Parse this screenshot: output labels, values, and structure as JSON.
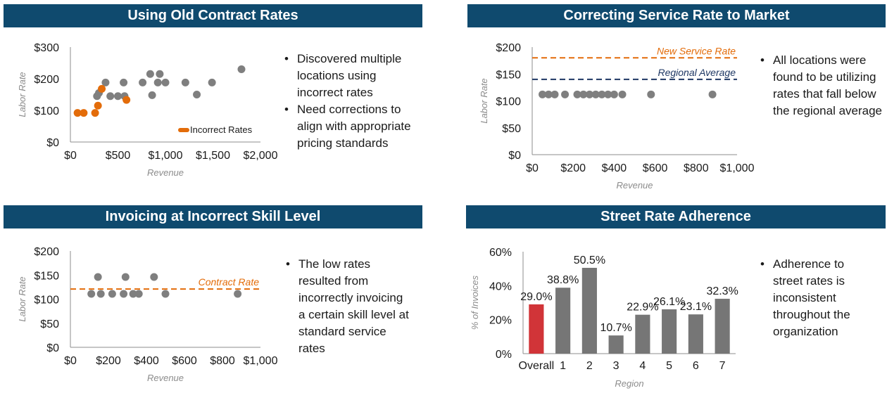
{
  "colors": {
    "banner": "#0f4a6e",
    "gray_point": "#7f7f7f",
    "orange": "#e36c0a",
    "navy": "#1f3864",
    "red": "#d13438",
    "bar_gray": "#767676"
  },
  "chart_data": [
    {
      "type": "scatter",
      "title": "Using Old Contract Rates",
      "xlabel": "Revenue",
      "ylabel": "Labor Rate",
      "xlim": [
        0,
        2000
      ],
      "ylim": [
        0,
        300
      ],
      "x_ticks": [
        0,
        500,
        1000,
        1500,
        2000
      ],
      "y_ticks": [
        0,
        100,
        200,
        300
      ],
      "x_tick_labels": [
        "$0",
        "$500",
        "$1,000",
        "$1,500",
        "$2,000"
      ],
      "y_tick_labels": [
        "$0",
        "$100",
        "$200",
        "$300"
      ],
      "legend": "Incorrect Rates",
      "legend_position": "bottom-right",
      "series": [
        {
          "color": "gray",
          "points": [
            [
              280,
              145
            ],
            [
              300,
              155
            ],
            [
              370,
              188
            ],
            [
              420,
              145
            ],
            [
              500,
              145
            ],
            [
              560,
              188
            ],
            [
              570,
              145
            ],
            [
              760,
              188
            ],
            [
              840,
              215
            ],
            [
              860,
              148
            ],
            [
              920,
              188
            ],
            [
              940,
              215
            ],
            [
              1000,
              188
            ],
            [
              1210,
              188
            ],
            [
              1330,
              150
            ],
            [
              1490,
              188
            ],
            [
              1800,
              230
            ]
          ]
        },
        {
          "name": "Incorrect Rates",
          "color": "orange",
          "points": [
            [
              75,
              92
            ],
            [
              140,
              92
            ],
            [
              260,
              92
            ],
            [
              290,
              115
            ],
            [
              330,
              168
            ],
            [
              590,
              133
            ]
          ]
        }
      ],
      "bullets": [
        "Discovered multiple locations using incorrect rates",
        "Need corrections to align with appropriate pricing standards"
      ]
    },
    {
      "type": "scatter",
      "title": "Correcting Service Rate to Market",
      "xlabel": "Revenue",
      "ylabel": "Labor Rate",
      "xlim": [
        0,
        1000
      ],
      "ylim": [
        0,
        200
      ],
      "x_ticks": [
        0,
        200,
        400,
        600,
        800,
        1000
      ],
      "y_ticks": [
        0,
        50,
        100,
        150,
        200
      ],
      "x_tick_labels": [
        "$0",
        "$200",
        "$400",
        "$600",
        "$800",
        "$1,000"
      ],
      "y_tick_labels": [
        "$0",
        "$50",
        "$100",
        "$150",
        "$200"
      ],
      "reference_lines": [
        {
          "label": "New Service Rate",
          "value": 180,
          "color": "orange"
        },
        {
          "label": "Regional Average",
          "value": 140,
          "color": "navy"
        }
      ],
      "series": [
        {
          "color": "gray",
          "points": [
            [
              50,
              112
            ],
            [
              80,
              112
            ],
            [
              110,
              112
            ],
            [
              160,
              112
            ],
            [
              220,
              112
            ],
            [
              250,
              112
            ],
            [
              280,
              112
            ],
            [
              310,
              112
            ],
            [
              340,
              112
            ],
            [
              370,
              112
            ],
            [
              400,
              112
            ],
            [
              440,
              112
            ],
            [
              580,
              112
            ],
            [
              880,
              112
            ]
          ]
        }
      ],
      "bullets": [
        "All locations were found to be utilizing rates that fall below the regional average"
      ]
    },
    {
      "type": "scatter",
      "title": "Invoicing at Incorrect Skill Level",
      "xlabel": "Revenue",
      "ylabel": "Labor Rate",
      "xlim": [
        0,
        1000
      ],
      "ylim": [
        0,
        200
      ],
      "x_ticks": [
        0,
        200,
        400,
        600,
        800,
        1000
      ],
      "y_ticks": [
        0,
        50,
        100,
        150,
        200
      ],
      "x_tick_labels": [
        "$0",
        "$200",
        "$400",
        "$600",
        "$800",
        "$1,000"
      ],
      "y_tick_labels": [
        "$0",
        "$50",
        "$100",
        "$150",
        "$200"
      ],
      "reference_lines": [
        {
          "label": "Contract Rate",
          "value": 121,
          "color": "orange"
        }
      ],
      "series": [
        {
          "color": "gray",
          "points": [
            [
              110,
              111
            ],
            [
              145,
              146
            ],
            [
              160,
              111
            ],
            [
              220,
              111
            ],
            [
              280,
              111
            ],
            [
              290,
              146
            ],
            [
              330,
              111
            ],
            [
              360,
              111
            ],
            [
              440,
              146
            ],
            [
              500,
              111
            ],
            [
              880,
              111
            ]
          ]
        }
      ],
      "bullets": [
        "The low rates resulted from incorrectly invoicing a certain skill level at standard service rates"
      ]
    },
    {
      "type": "bar",
      "title": "Street Rate Adherence",
      "xlabel": "Region",
      "ylabel": "% of Invoices",
      "ylim": [
        0,
        60
      ],
      "y_ticks": [
        0,
        20,
        40,
        60
      ],
      "y_tick_labels": [
        "0%",
        "20%",
        "40%",
        "60%"
      ],
      "categories": [
        "Overall",
        "1",
        "2",
        "3",
        "4",
        "5",
        "6",
        "7"
      ],
      "values": [
        29.0,
        38.8,
        50.5,
        10.7,
        22.9,
        26.1,
        23.1,
        32.3
      ],
      "data_labels": [
        "29.0%",
        "38.8%",
        "50.5%",
        "10.7%",
        "22.9%",
        "26.1%",
        "23.1%",
        "32.3%"
      ],
      "highlight_first": true,
      "bullets": [
        "Adherence to street rates is inconsistent throughout the organization"
      ]
    }
  ]
}
